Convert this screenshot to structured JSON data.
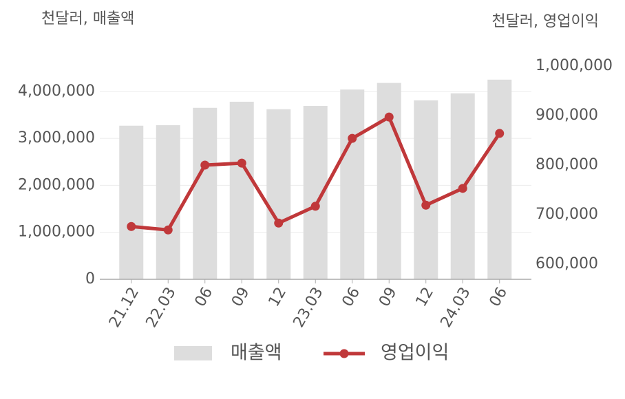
{
  "chart_data": {
    "type": "bar",
    "y_label": "천달러, 매출액",
    "y2_label": "천달러, 영업이익",
    "categories": [
      "21.12",
      "22.03",
      "06",
      "09",
      "12",
      "23.03",
      "06",
      "09",
      "12",
      "24.03",
      "06"
    ],
    "series": [
      {
        "name": "매출액",
        "type": "bar",
        "color": "#dddddd",
        "values": [
          3270000,
          3280000,
          3650000,
          3780000,
          3620000,
          3690000,
          4040000,
          4180000,
          3810000,
          3960000,
          4250000
        ]
      },
      {
        "name": "영업이익",
        "type": "line",
        "axis": "y2",
        "color": "#c0383a",
        "values": [
          676000,
          669000,
          800000,
          804000,
          683000,
          717000,
          854000,
          897000,
          719000,
          753000,
          864000
        ]
      }
    ],
    "ylim": [
      0,
      4540000
    ],
    "yticks": [
      0,
      {
        "value": 1000000,
        "label": "1,000,000"
      },
      {
        "value": 2000000,
        "label": "2,000,000"
      },
      {
        "value": 3000000,
        "label": "3,000,000"
      },
      {
        "value": 4000000,
        "label": "4,000,000"
      }
    ],
    "y2lim": [
      569400,
      1000000
    ],
    "y2ticks": [
      {
        "value": 600000,
        "label": "600,000"
      },
      {
        "value": 700000,
        "label": "700,000"
      },
      {
        "value": 800000,
        "label": "800,000"
      },
      {
        "value": 900000,
        "label": "900,000"
      },
      {
        "value": 1000000,
        "label": "1,000,000"
      }
    ],
    "grid": true
  }
}
